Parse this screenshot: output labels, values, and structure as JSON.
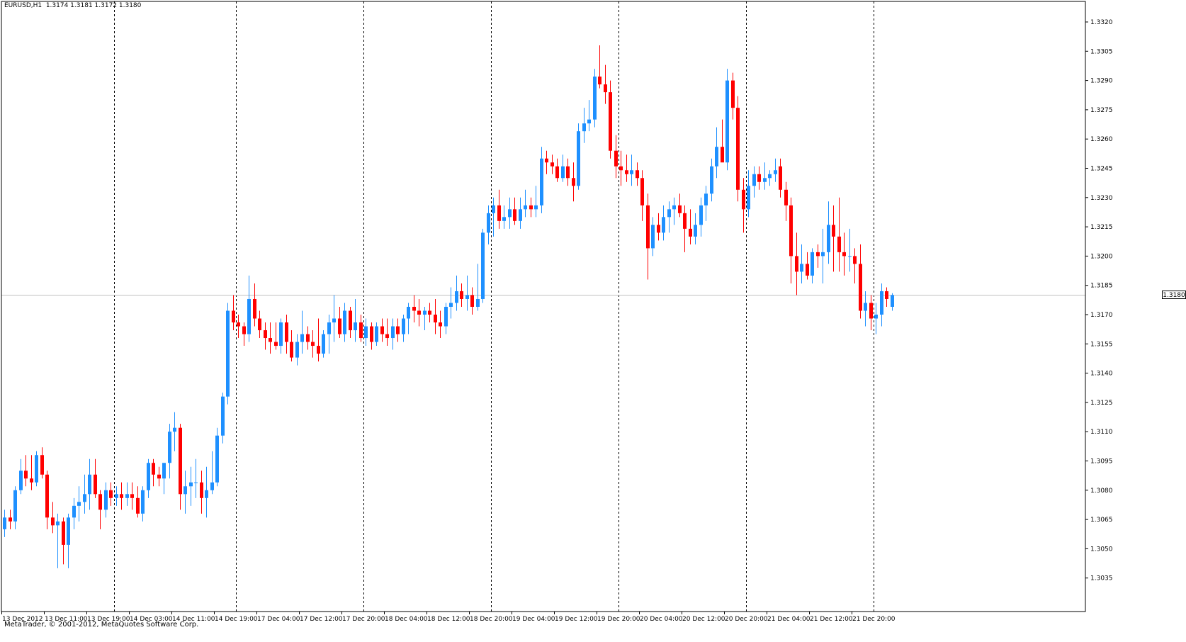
{
  "header": {
    "symbol_info": "EURUSD,H1  1.3174 1.3181 1.3172 1.3180"
  },
  "footer": {
    "copyright": "MetaTrader, © 2001-2012, MetaQuotes Software Corp."
  },
  "colors": {
    "bull": "#1E90FF",
    "bear": "#FF0000",
    "grid": "#000000",
    "axis": "#000000",
    "current_price_line": "#C0C0C0"
  },
  "chart_data": {
    "type": "candlestick",
    "symbol": "EURUSD",
    "timeframe": "H1",
    "ylim": [
      1.303,
      1.333
    ],
    "y_ticks": [
      "1.3320",
      "1.3305",
      "1.3290",
      "1.3275",
      "1.3260",
      "1.3245",
      "1.3230",
      "1.3215",
      "1.3200",
      "1.3185",
      "1.3170",
      "1.3155",
      "1.3140",
      "1.3125",
      "1.3110",
      "1.3095",
      "1.3080",
      "1.3065",
      "1.3050",
      "1.3035"
    ],
    "x_ticks": [
      "13 Dec 2012",
      "13 Dec 11:00",
      "13 Dec 19:00",
      "14 Dec 03:00",
      "14 Dec 11:00",
      "14 Dec 19:00",
      "17 Dec 04:00",
      "17 Dec 12:00",
      "17 Dec 20:00",
      "18 Dec 04:00",
      "18 Dec 12:00",
      "18 Dec 20:00",
      "19 Dec 04:00",
      "19 Dec 12:00",
      "19 Dec 20:00",
      "20 Dec 04:00",
      "20 Dec 12:00",
      "20 Dec 20:00",
      "21 Dec 04:00",
      "21 Dec 12:00",
      "21 Dec 20:00"
    ],
    "current_price": "1.3180",
    "grid": "vertical-dashed",
    "candles": [
      [
        1.306,
        1.307,
        1.3056,
        1.3066
      ],
      [
        1.3066,
        1.307,
        1.306,
        1.3064
      ],
      [
        1.3064,
        1.3082,
        1.306,
        1.308
      ],
      [
        1.308,
        1.3096,
        1.3078,
        1.309
      ],
      [
        1.309,
        1.3098,
        1.3082,
        1.3086
      ],
      [
        1.3086,
        1.3098,
        1.308,
        1.3084
      ],
      [
        1.3084,
        1.31,
        1.3082,
        1.3098
      ],
      [
        1.3098,
        1.3102,
        1.3086,
        1.3088
      ],
      [
        1.3088,
        1.309,
        1.306,
        1.3066
      ],
      [
        1.3066,
        1.3074,
        1.3058,
        1.3062
      ],
      [
        1.3062,
        1.3068,
        1.304,
        1.3064
      ],
      [
        1.3064,
        1.3066,
        1.3042,
        1.3052
      ],
      [
        1.3052,
        1.3068,
        1.304,
        1.3066
      ],
      [
        1.3066,
        1.3076,
        1.306,
        1.3072
      ],
      [
        1.3072,
        1.3082,
        1.3064,
        1.3074
      ],
      [
        1.3074,
        1.3088,
        1.3068,
        1.3078
      ],
      [
        1.3078,
        1.3096,
        1.307,
        1.3088
      ],
      [
        1.3088,
        1.3096,
        1.3076,
        1.3078
      ],
      [
        1.3078,
        1.308,
        1.306,
        1.307
      ],
      [
        1.307,
        1.3084,
        1.3066,
        1.308
      ],
      [
        1.308,
        1.3084,
        1.3072,
        1.3076
      ],
      [
        1.3076,
        1.3082,
        1.3072,
        1.3078
      ],
      [
        1.3078,
        1.3084,
        1.307,
        1.3076
      ],
      [
        1.3076,
        1.3084,
        1.3072,
        1.3078
      ],
      [
        1.3078,
        1.3084,
        1.307,
        1.3076
      ],
      [
        1.3076,
        1.3082,
        1.3066,
        1.3068
      ],
      [
        1.3068,
        1.3082,
        1.3064,
        1.308
      ],
      [
        1.308,
        1.3096,
        1.3076,
        1.3094
      ],
      [
        1.3094,
        1.3096,
        1.3082,
        1.3088
      ],
      [
        1.3088,
        1.3092,
        1.3082,
        1.3086
      ],
      [
        1.3086,
        1.3094,
        1.3078,
        1.3094
      ],
      [
        1.3094,
        1.3114,
        1.3086,
        1.311
      ],
      [
        1.311,
        1.312,
        1.31,
        1.3112
      ],
      [
        1.3112,
        1.3114,
        1.307,
        1.3078
      ],
      [
        1.3078,
        1.309,
        1.3068,
        1.3082
      ],
      [
        1.3082,
        1.3092,
        1.3072,
        1.3084
      ],
      [
        1.3084,
        1.3096,
        1.3076,
        1.3084
      ],
      [
        1.3084,
        1.309,
        1.3068,
        1.3076
      ],
      [
        1.3076,
        1.3092,
        1.3066,
        1.308
      ],
      [
        1.308,
        1.31,
        1.3078,
        1.3084
      ],
      [
        1.3084,
        1.3112,
        1.3082,
        1.3108
      ],
      [
        1.3108,
        1.313,
        1.3104,
        1.3128
      ],
      [
        1.3128,
        1.3176,
        1.3124,
        1.3172
      ],
      [
        1.3172,
        1.318,
        1.3162,
        1.3166
      ],
      [
        1.3166,
        1.317,
        1.3158,
        1.3164
      ],
      [
        1.3164,
        1.3166,
        1.3154,
        1.316
      ],
      [
        1.316,
        1.319,
        1.3156,
        1.3178
      ],
      [
        1.3178,
        1.3186,
        1.3164,
        1.3168
      ],
      [
        1.3168,
        1.3172,
        1.3158,
        1.3162
      ],
      [
        1.3162,
        1.3166,
        1.3152,
        1.3158
      ],
      [
        1.3158,
        1.3166,
        1.315,
        1.3156
      ],
      [
        1.3156,
        1.3166,
        1.3152,
        1.3154
      ],
      [
        1.3154,
        1.3168,
        1.315,
        1.3166
      ],
      [
        1.3166,
        1.317,
        1.315,
        1.3156
      ],
      [
        1.3156,
        1.3162,
        1.3146,
        1.3148
      ],
      [
        1.3148,
        1.316,
        1.3144,
        1.3156
      ],
      [
        1.3156,
        1.3172,
        1.315,
        1.316
      ],
      [
        1.316,
        1.3164,
        1.3152,
        1.3156
      ],
      [
        1.3156,
        1.3162,
        1.3148,
        1.3154
      ],
      [
        1.3154,
        1.3168,
        1.3146,
        1.315
      ],
      [
        1.315,
        1.3162,
        1.3148,
        1.316
      ],
      [
        1.316,
        1.317,
        1.315,
        1.3166
      ],
      [
        1.3166,
        1.318,
        1.3156,
        1.3168
      ],
      [
        1.3168,
        1.3174,
        1.3158,
        1.316
      ],
      [
        1.316,
        1.3176,
        1.3156,
        1.3172
      ],
      [
        1.3172,
        1.3174,
        1.3158,
        1.3162
      ],
      [
        1.3162,
        1.3178,
        1.3156,
        1.3166
      ],
      [
        1.3166,
        1.317,
        1.3156,
        1.3158
      ],
      [
        1.3158,
        1.3168,
        1.3154,
        1.3164
      ],
      [
        1.3164,
        1.3166,
        1.3152,
        1.3156
      ],
      [
        1.3156,
        1.3166,
        1.3154,
        1.3164
      ],
      [
        1.3164,
        1.3168,
        1.3156,
        1.316
      ],
      [
        1.316,
        1.3168,
        1.3154,
        1.3158
      ],
      [
        1.3158,
        1.3168,
        1.3152,
        1.3164
      ],
      [
        1.3164,
        1.3168,
        1.3156,
        1.316
      ],
      [
        1.316,
        1.317,
        1.3156,
        1.3168
      ],
      [
        1.3168,
        1.3176,
        1.316,
        1.3174
      ],
      [
        1.3174,
        1.318,
        1.3166,
        1.3172
      ],
      [
        1.3172,
        1.3178,
        1.3164,
        1.317
      ],
      [
        1.317,
        1.3174,
        1.3162,
        1.3172
      ],
      [
        1.3172,
        1.3176,
        1.3166,
        1.317
      ],
      [
        1.317,
        1.3178,
        1.316,
        1.3166
      ],
      [
        1.3166,
        1.3172,
        1.3158,
        1.3164
      ],
      [
        1.3164,
        1.3176,
        1.316,
        1.3174
      ],
      [
        1.3174,
        1.3184,
        1.3168,
        1.3176
      ],
      [
        1.3176,
        1.319,
        1.3172,
        1.3182
      ],
      [
        1.3182,
        1.3186,
        1.3174,
        1.3178
      ],
      [
        1.3178,
        1.319,
        1.3172,
        1.318
      ],
      [
        1.318,
        1.3184,
        1.317,
        1.3174
      ],
      [
        1.3174,
        1.3196,
        1.3172,
        1.3178
      ],
      [
        1.3178,
        1.3214,
        1.3176,
        1.3212
      ],
      [
        1.3212,
        1.3226,
        1.3206,
        1.3222
      ],
      [
        1.3222,
        1.323,
        1.321,
        1.3226
      ],
      [
        1.3226,
        1.3234,
        1.3214,
        1.3218
      ],
      [
        1.3218,
        1.3226,
        1.3214,
        1.322
      ],
      [
        1.322,
        1.323,
        1.3214,
        1.3224
      ],
      [
        1.3224,
        1.323,
        1.3216,
        1.3218
      ],
      [
        1.3218,
        1.323,
        1.3214,
        1.3224
      ],
      [
        1.3224,
        1.3234,
        1.322,
        1.3226
      ],
      [
        1.3226,
        1.323,
        1.322,
        1.3224
      ],
      [
        1.3224,
        1.3236,
        1.322,
        1.3226
      ],
      [
        1.3226,
        1.3256,
        1.3222,
        1.325
      ],
      [
        1.325,
        1.3254,
        1.3242,
        1.3248
      ],
      [
        1.3248,
        1.3252,
        1.3242,
        1.3246
      ],
      [
        1.3246,
        1.325,
        1.3238,
        1.324
      ],
      [
        1.324,
        1.3252,
        1.3238,
        1.3246
      ],
      [
        1.3246,
        1.325,
        1.3236,
        1.324
      ],
      [
        1.324,
        1.3248,
        1.3228,
        1.3236
      ],
      [
        1.3236,
        1.3268,
        1.3234,
        1.3264
      ],
      [
        1.3264,
        1.3276,
        1.3258,
        1.3268
      ],
      [
        1.3268,
        1.328,
        1.3264,
        1.327
      ],
      [
        1.327,
        1.3296,
        1.3266,
        1.3292
      ],
      [
        1.3292,
        1.3308,
        1.3286,
        1.3288
      ],
      [
        1.3288,
        1.3298,
        1.3278,
        1.3284
      ],
      [
        1.3284,
        1.329,
        1.325,
        1.3254
      ],
      [
        1.3254,
        1.3262,
        1.324,
        1.3246
      ],
      [
        1.3246,
        1.3254,
        1.3236,
        1.3244
      ],
      [
        1.3244,
        1.3252,
        1.3238,
        1.3242
      ],
      [
        1.3242,
        1.3252,
        1.3236,
        1.3244
      ],
      [
        1.3244,
        1.3248,
        1.3236,
        1.324
      ],
      [
        1.324,
        1.3244,
        1.3218,
        1.3226
      ],
      [
        1.3226,
        1.3232,
        1.3188,
        1.3204
      ],
      [
        1.3204,
        1.322,
        1.32,
        1.3216
      ],
      [
        1.3216,
        1.3222,
        1.3208,
        1.3212
      ],
      [
        1.3212,
        1.3226,
        1.3208,
        1.322
      ],
      [
        1.322,
        1.3228,
        1.3212,
        1.3224
      ],
      [
        1.3224,
        1.323,
        1.3216,
        1.3226
      ],
      [
        1.3226,
        1.3232,
        1.322,
        1.3222
      ],
      [
        1.3222,
        1.3226,
        1.3202,
        1.3214
      ],
      [
        1.3214,
        1.3224,
        1.3206,
        1.321
      ],
      [
        1.321,
        1.3222,
        1.3206,
        1.3216
      ],
      [
        1.3216,
        1.323,
        1.321,
        1.3226
      ],
      [
        1.3226,
        1.3236,
        1.3218,
        1.3232
      ],
      [
        1.3232,
        1.325,
        1.3228,
        1.3246
      ],
      [
        1.3246,
        1.3266,
        1.324,
        1.3256
      ],
      [
        1.3256,
        1.327,
        1.325,
        1.3248
      ],
      [
        1.3248,
        1.3296,
        1.3244,
        1.329
      ],
      [
        1.329,
        1.3294,
        1.327,
        1.3276
      ],
      [
        1.3276,
        1.3282,
        1.3228,
        1.3234
      ],
      [
        1.3234,
        1.324,
        1.3212,
        1.3224
      ],
      [
        1.3224,
        1.3244,
        1.322,
        1.3236
      ],
      [
        1.3236,
        1.3246,
        1.323,
        1.3242
      ],
      [
        1.3242,
        1.3246,
        1.3234,
        1.3238
      ],
      [
        1.3238,
        1.3248,
        1.3234,
        1.324
      ],
      [
        1.324,
        1.3244,
        1.3236,
        1.3242
      ],
      [
        1.3242,
        1.325,
        1.3238,
        1.3244
      ],
      [
        1.3246,
        1.325,
        1.323,
        1.3234
      ],
      [
        1.3234,
        1.3238,
        1.3218,
        1.3226
      ],
      [
        1.3226,
        1.323,
        1.3186,
        1.32
      ],
      [
        1.32,
        1.3212,
        1.318,
        1.3192
      ],
      [
        1.3192,
        1.3206,
        1.3186,
        1.3196
      ],
      [
        1.3196,
        1.3202,
        1.3188,
        1.319
      ],
      [
        1.319,
        1.3204,
        1.3186,
        1.3202
      ],
      [
        1.3202,
        1.3206,
        1.3194,
        1.32
      ],
      [
        1.32,
        1.3214,
        1.3186,
        1.3202
      ],
      [
        1.3202,
        1.3228,
        1.3196,
        1.3216
      ],
      [
        1.3216,
        1.3226,
        1.3192,
        1.321
      ],
      [
        1.321,
        1.323,
        1.3192,
        1.3202
      ],
      [
        1.3202,
        1.3212,
        1.319,
        1.32
      ],
      [
        1.32,
        1.3214,
        1.3192,
        1.32
      ],
      [
        1.32,
        1.3204,
        1.3186,
        1.3196
      ],
      [
        1.3196,
        1.3206,
        1.3168,
        1.3172
      ],
      [
        1.3172,
        1.3182,
        1.3164,
        1.3176
      ],
      [
        1.3176,
        1.318,
        1.3162,
        1.3168
      ],
      [
        1.3168,
        1.3176,
        1.316,
        1.317
      ],
      [
        1.317,
        1.3186,
        1.3164,
        1.3182
      ],
      [
        1.3182,
        1.3184,
        1.3174,
        1.3178
      ],
      [
        1.3174,
        1.3181,
        1.3172,
        1.318
      ]
    ]
  }
}
